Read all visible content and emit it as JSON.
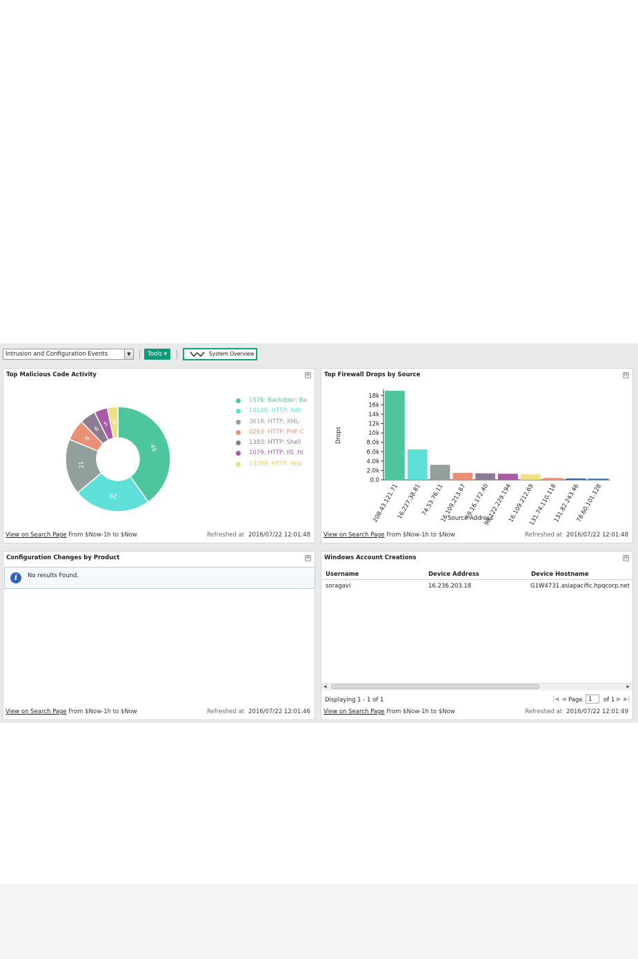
{
  "toolbar": {
    "dashboard_select": "Intrusion and Configuration Events",
    "tools_label": "Tools ▾",
    "system_overview_label": "System Overview"
  },
  "panels": {
    "malicious": {
      "title": "Top Malicious Code Activity",
      "legend": [
        {
          "label": "1576: Backdoor: Ba",
          "color": "#4dc6a0"
        },
        {
          "label": "10146: HTTP: Ado",
          "color": "#5ee0d8"
        },
        {
          "label": "3618: HTTP: XML-",
          "color": "#939f9c"
        },
        {
          "label": "0263: HTTP: PHF C",
          "color": "#eb8f75"
        },
        {
          "label": "1383: HTTP: Shell",
          "color": "#8e7b93"
        },
        {
          "label": "1079: HTTP: IIS .ht",
          "color": "#a859a8"
        },
        {
          "label": "13399: HTTP: Hou",
          "color": "#f0e082"
        }
      ]
    },
    "firewall": {
      "title": "Top Firewall Drops by Source"
    },
    "config": {
      "title": "Configuration Changes by Product",
      "message": "No results Found."
    },
    "windows": {
      "title": "Windows Account Creations",
      "columns": [
        "Username",
        "Device Address",
        "Device Hostname"
      ],
      "rows": [
        [
          "soragavi",
          "16.236.203.18",
          "G1W4731.asiapacific.hpqcorp.net"
        ]
      ],
      "display_text": "Displaying 1 - 1 of 1",
      "page_label": "Page",
      "page_value": "1",
      "page_of": "of 1"
    }
  },
  "footers": {
    "link": "View on Search Page",
    "range": "From $Now-1h to $Now",
    "refreshed_label": "Refreshed at",
    "malicious_time": "2016/07/22 12:01:48",
    "firewall_time": "2016/07/22 12:01:48",
    "config_time": "2016/07/22 12:01:46",
    "windows_time": "2016/07/22 12:01:49"
  },
  "chart_data": [
    {
      "type": "pie",
      "title": "Top Malicious Code Activity",
      "donut": true,
      "categories": [
        "1576: Backdoor: Ba",
        "10146: HTTP: Ado",
        "3618: HTTP: XML-",
        "0263: HTTP: PHF C",
        "1383: HTTP: Shell",
        "1079: HTTP: IIS .ht",
        "13399: HTTP: Hou"
      ],
      "values": [
        49,
        29,
        21,
        8,
        6,
        5,
        4
      ],
      "colors": [
        "#4dc6a0",
        "#5ee0d8",
        "#939f9c",
        "#eb8f75",
        "#8e7b93",
        "#a859a8",
        "#f0e082"
      ]
    },
    {
      "type": "bar",
      "title": "Top Firewall Drops by Source",
      "xlabel": "Source Address",
      "ylabel": "Drops",
      "categories": [
        "208.43.121.71",
        "16.227.38.81",
        "74.53.76.11",
        "16.109.213.67",
        "69.16.172.40",
        "98.122.229.194",
        "16.109.212.69",
        "131.74.110.118",
        "131.82.243.46",
        "78.60.101.128"
      ],
      "values": [
        19000,
        6500,
        3200,
        1500,
        1400,
        1300,
        1200,
        400,
        300,
        250
      ],
      "colors": [
        "#4dc6a0",
        "#5ee0d8",
        "#939f9c",
        "#eb8f75",
        "#8e7b93",
        "#a859a8",
        "#f0e082",
        "#eb8f75",
        "#2e6fb3",
        "#2e6fb3"
      ],
      "yticks": [
        "0.0",
        "2.0k",
        "4.0k",
        "6.0k",
        "8.0k",
        "10k",
        "12k",
        "14k",
        "16k",
        "18k"
      ],
      "ylim": [
        0,
        19000
      ]
    }
  ]
}
